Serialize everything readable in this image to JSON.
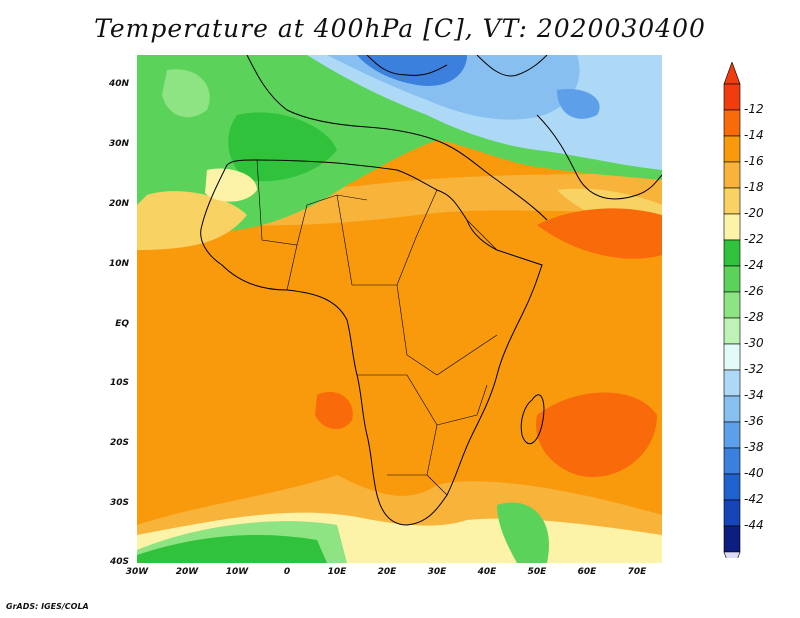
{
  "title": "Temperature at 400hPa [C], VT: 2020030400",
  "credit": "GrADS: IGES/COLA",
  "map": {
    "projection": "latlon",
    "lat_range": [
      -40,
      45
    ],
    "lon_range": [
      -30,
      75
    ],
    "lat_ticks": [
      "40N",
      "30N",
      "20N",
      "10N",
      "EQ",
      "10S",
      "20S",
      "30S",
      "40S"
    ],
    "lon_ticks": [
      "30W",
      "20W",
      "10W",
      "0",
      "10E",
      "20E",
      "30E",
      "40E",
      "50E",
      "60E",
      "70E"
    ]
  },
  "colorbar": {
    "unit": "C",
    "labels": [
      "-12",
      "-14",
      "-16",
      "-18",
      "-20",
      "-22",
      "-24",
      "-26",
      "-28",
      "-30",
      "-32",
      "-34",
      "-36",
      "-38",
      "-40",
      "-42",
      "-44"
    ],
    "colors": [
      "#f03c0e",
      "#f86a0a",
      "#f99a0c",
      "#f8b33a",
      "#f8d364",
      "#fcf3a8",
      "#2fc23a",
      "#5bd35a",
      "#8ee382",
      "#bff2b6",
      "#e2fbf9",
      "#aed9f6",
      "#86bff0",
      "#5d9fe9",
      "#3a80dc",
      "#1f62cf",
      "#1645b8",
      "#0c1e80"
    ],
    "top_arrow_color": "#f03c0e",
    "bottom_arrow_color": "#dcdcf6"
  },
  "regions": {
    "dominant_color": "#f99a0c",
    "north_africa": "#5bd35a",
    "mediterranean": "#3a80dc",
    "southern_ocean": "#2fc23a"
  }
}
